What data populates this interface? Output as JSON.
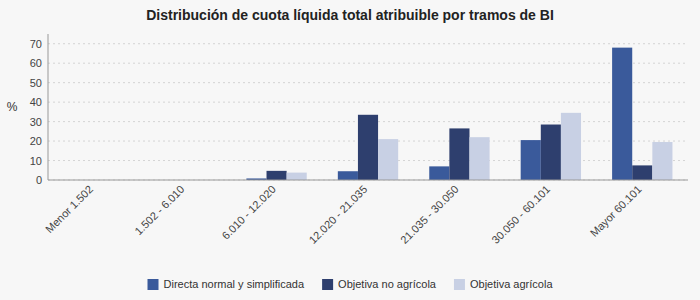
{
  "chart_data": {
    "type": "bar",
    "title": "Distribución de cuota líquida total atribuible por tramos de BI",
    "ylabel": "%",
    "categories": [
      "Menor 1.502",
      "1.502 - 6.010",
      "6.010 - 12.020",
      "12.020 - 21.035",
      "21.035 - 30.050",
      "30.050 - 60.101",
      "Mayor 60.101"
    ],
    "series": [
      {
        "name": "Directa normal y simplificada",
        "color": "#3a5a9b",
        "values": [
          0.0,
          0.0,
          0.8,
          4.5,
          7.0,
          20.5,
          68.0
        ]
      },
      {
        "name": "Objetiva no agrícola",
        "color": "#2e3f6e",
        "values": [
          0.0,
          0.0,
          4.7,
          33.5,
          26.5,
          28.5,
          7.5
        ]
      },
      {
        "name": "Objetiva agrícola",
        "color": "#c8d0e4",
        "values": [
          0.0,
          0.0,
          3.8,
          21.0,
          22.0,
          34.5,
          19.5
        ]
      }
    ],
    "ylim": [
      0,
      75
    ],
    "yticks": [
      0,
      10,
      20,
      30,
      40,
      50,
      60,
      70
    ],
    "grid": true,
    "legend": "bottom"
  }
}
